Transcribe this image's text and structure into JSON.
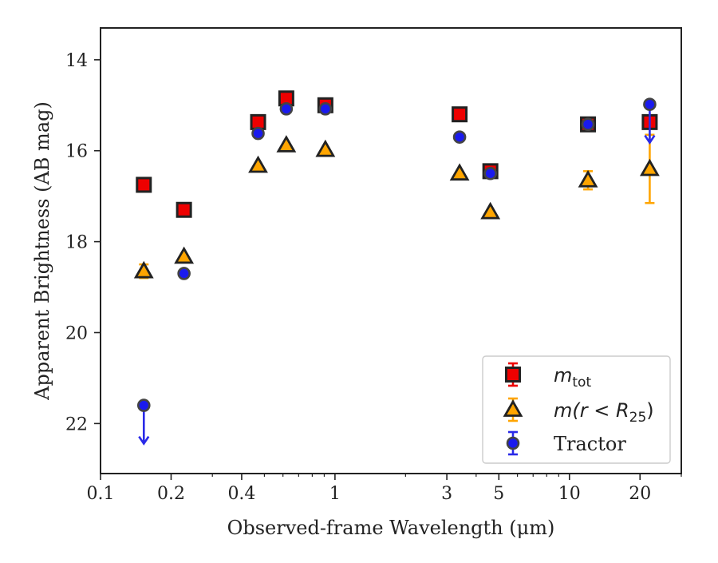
{
  "chart_data": {
    "type": "scatter",
    "xlabel": "Observed-frame Wavelength (μm)",
    "ylabel": "Apparent Brightness (AB mag)",
    "xscale": "log",
    "xlim": [
      0.1,
      30
    ],
    "ylim": [
      23.1,
      13.3
    ],
    "y_inverted": true,
    "grid": false,
    "legend_position": "lower-right",
    "x_ticks": [
      0.1,
      0.2,
      0.4,
      1,
      3,
      5,
      10,
      20
    ],
    "x_tick_labels": [
      "0.1",
      "0.2",
      "0.4",
      "1",
      "3",
      "5",
      "10",
      "20"
    ],
    "y_ticks": [
      14,
      16,
      18,
      20,
      22
    ],
    "y_tick_labels": [
      "14",
      "16",
      "18",
      "20",
      "22"
    ],
    "series": [
      {
        "name": "m_tot",
        "label_main": "m",
        "label_sub": "tot",
        "marker": "square",
        "fill": "#ee0000",
        "edge": "#222222",
        "errcolor": "#ee0000",
        "points": [
          {
            "x": 0.153,
            "y": 16.75
          },
          {
            "x": 0.227,
            "y": 17.3
          },
          {
            "x": 0.47,
            "y": 15.37
          },
          {
            "x": 0.62,
            "y": 14.85
          },
          {
            "x": 0.91,
            "y": 15.0
          },
          {
            "x": 3.4,
            "y": 15.2
          },
          {
            "x": 4.6,
            "y": 16.45
          },
          {
            "x": 12.0,
            "y": 15.42
          },
          {
            "x": 22.0,
            "y": 15.37
          }
        ]
      },
      {
        "name": "m(r<R25)",
        "label_main": "m(r < R",
        "label_sub": "25",
        "label_end": ")",
        "marker": "triangle",
        "fill": "#ffa500",
        "edge": "#222222",
        "errcolor": "#ffa500",
        "points": [
          {
            "x": 0.153,
            "y": 18.65,
            "yerr": 0.15
          },
          {
            "x": 0.227,
            "y": 18.33
          },
          {
            "x": 0.47,
            "y": 16.33
          },
          {
            "x": 0.62,
            "y": 15.88
          },
          {
            "x": 0.91,
            "y": 15.98
          },
          {
            "x": 3.4,
            "y": 16.5
          },
          {
            "x": 4.6,
            "y": 17.35
          },
          {
            "x": 12.0,
            "y": 16.65,
            "yerr": 0.2
          },
          {
            "x": 22.0,
            "y": 16.4,
            "yerr": 0.75
          }
        ]
      },
      {
        "name": "Tractor",
        "label_main": "Tractor",
        "marker": "circle",
        "fill": "#1a1aee",
        "edge": "#444444",
        "errcolor": "#2a2ae8",
        "points": [
          {
            "x": 0.153,
            "y": 21.6,
            "upper_limit": true
          },
          {
            "x": 0.227,
            "y": 18.7
          },
          {
            "x": 0.47,
            "y": 15.62
          },
          {
            "x": 0.62,
            "y": 15.08
          },
          {
            "x": 0.91,
            "y": 15.08
          },
          {
            "x": 3.4,
            "y": 15.7
          },
          {
            "x": 4.6,
            "y": 16.5
          },
          {
            "x": 12.0,
            "y": 15.42
          },
          {
            "x": 22.0,
            "y": 14.98,
            "upper_limit": true
          }
        ]
      }
    ]
  }
}
